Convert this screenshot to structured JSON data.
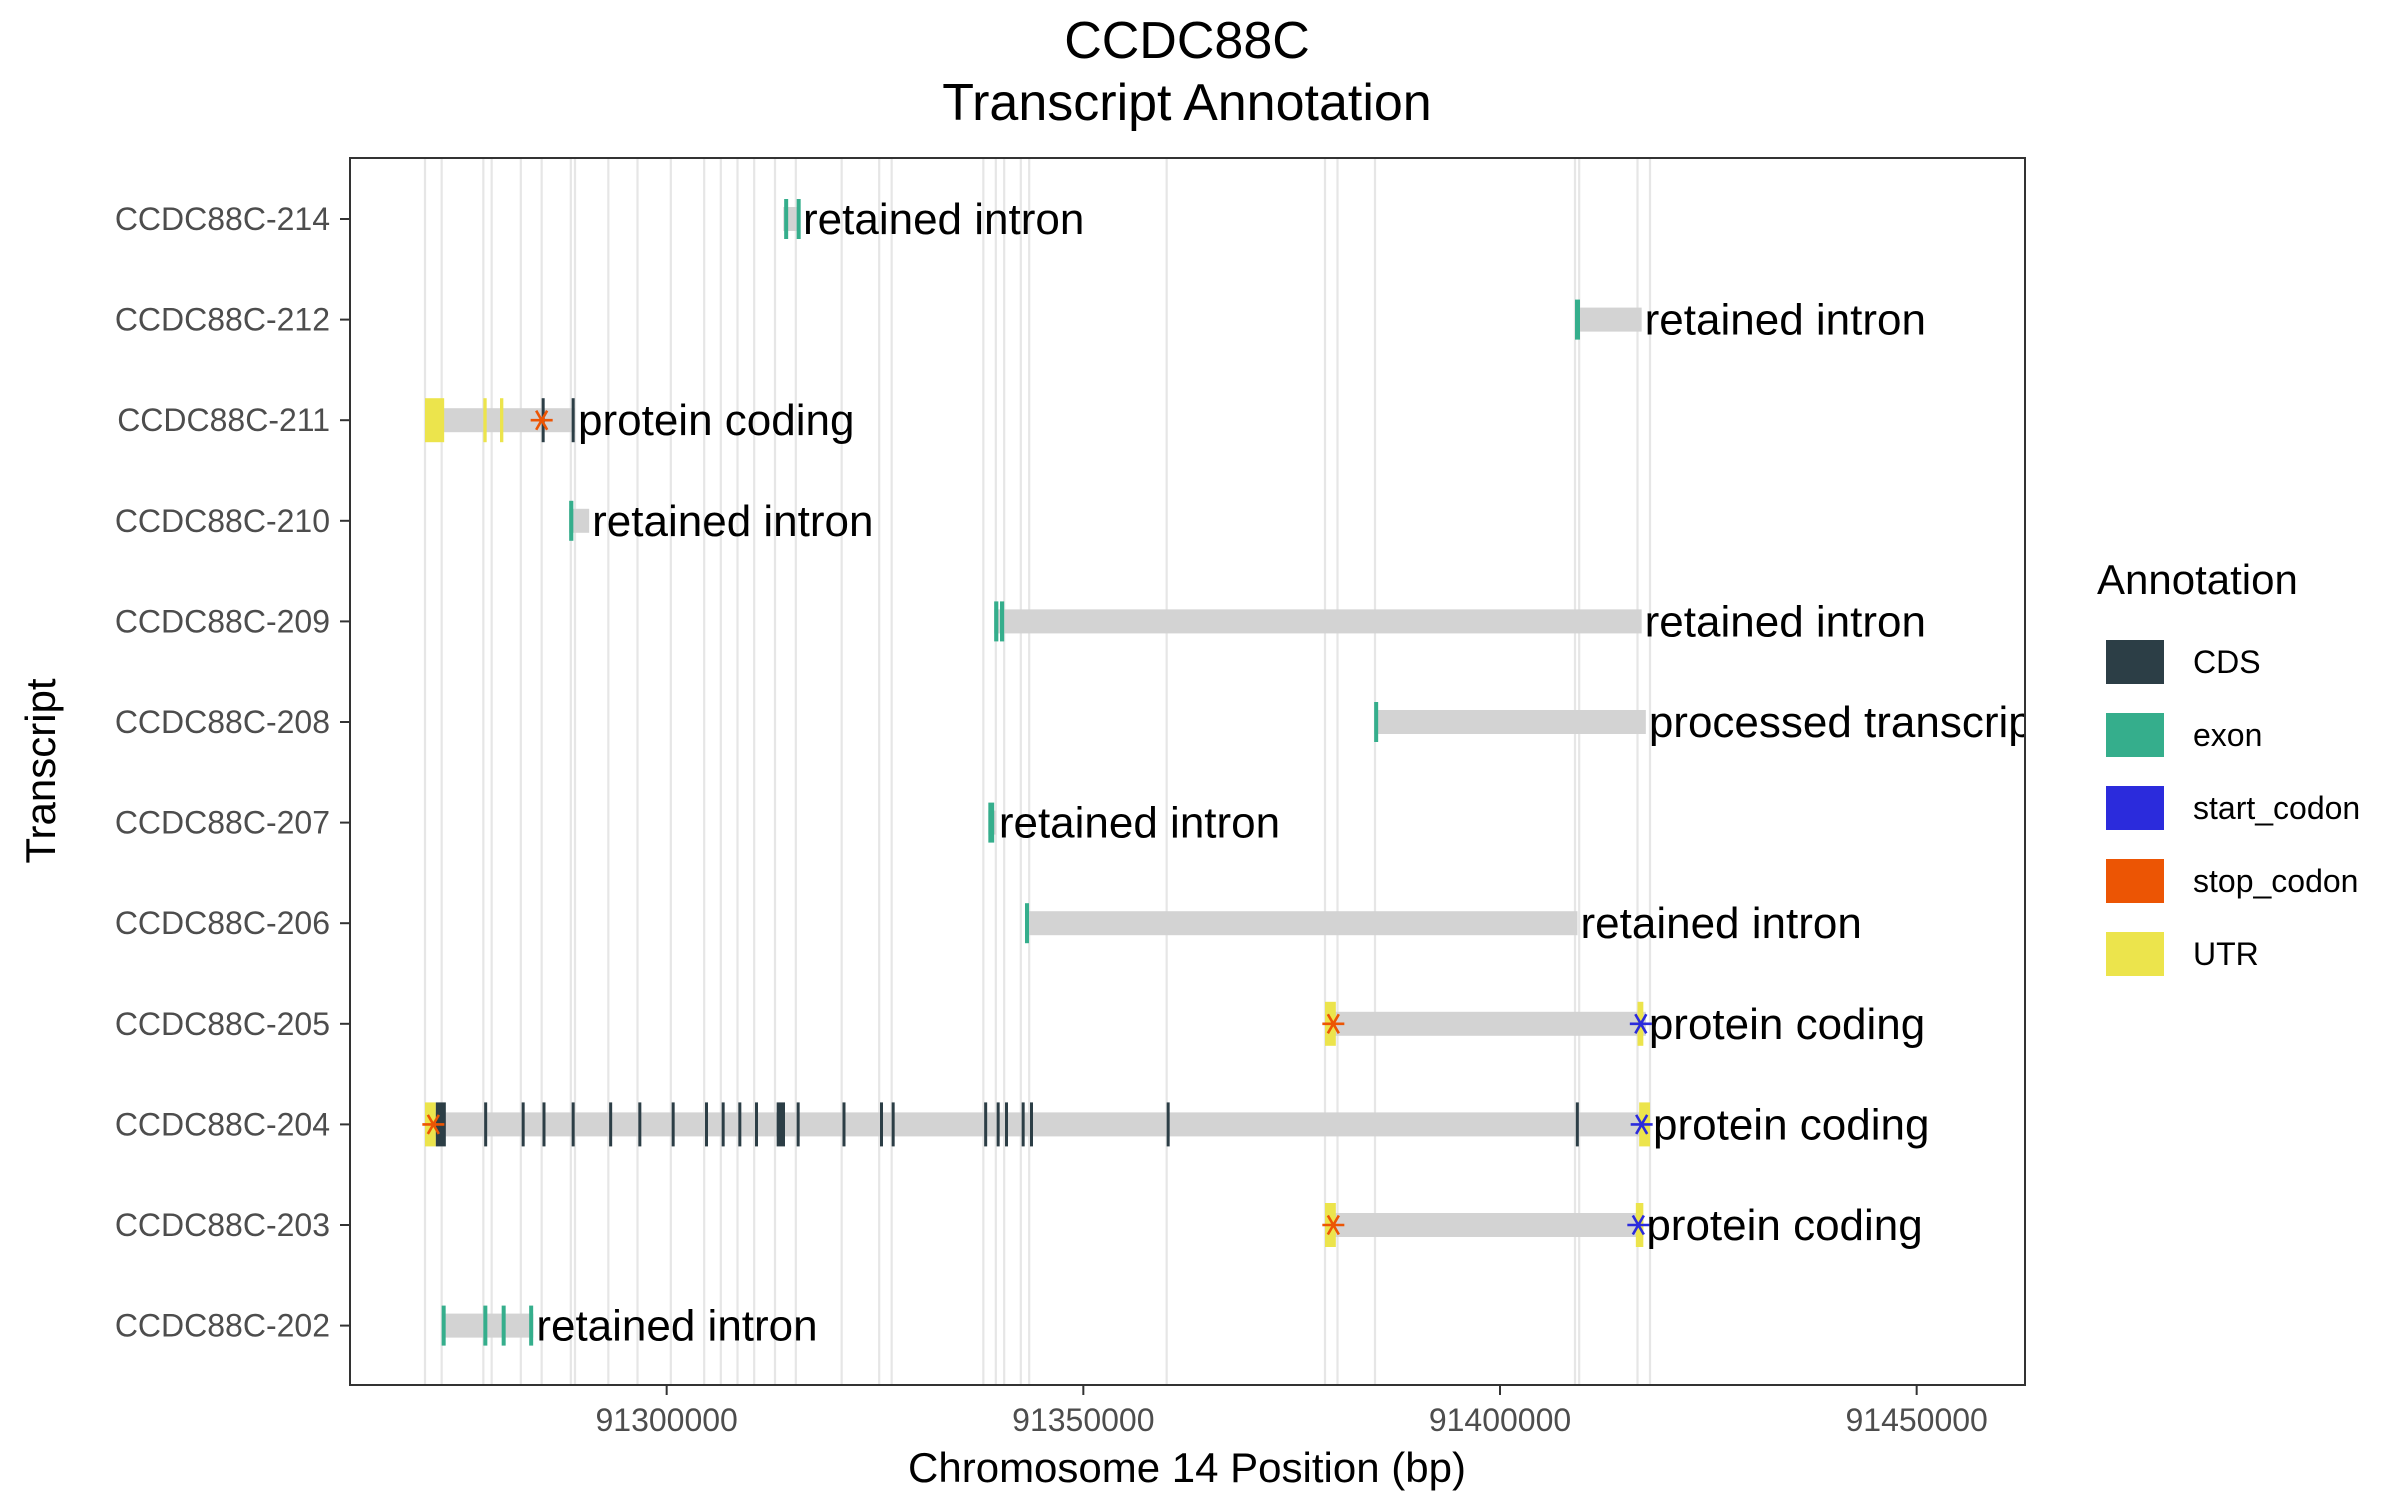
{
  "chart_data": {
    "type": "gantt",
    "title": "CCDC88C",
    "subtitle": "Transcript Annotation",
    "xlabel": "Chromosome 14 Position (bp)",
    "ylabel": "Transcript",
    "xlim": [
      91262000,
      91463000
    ],
    "x_ticks": [
      91300000,
      91350000,
      91400000,
      91450000
    ],
    "x_tick_labels": [
      "91300000",
      "91350000",
      "91400000",
      "91450000"
    ],
    "grid": "vertical lines at exon boundaries",
    "legend": {
      "title": "Annotation",
      "placement": "right",
      "entries": [
        {
          "label": "CDS",
          "color": "#2c3e46"
        },
        {
          "label": "exon",
          "color": "#35ae8c"
        },
        {
          "label": "start_codon",
          "color": "#2b2bdc"
        },
        {
          "label": "stop_codon",
          "color": "#ec5504"
        },
        {
          "label": "UTR",
          "color": "#ece44c"
        }
      ]
    },
    "intron_color": "#d3d3d3",
    "exon_boundaries": [
      91271000,
      91273000,
      91278000,
      91279000,
      91282500,
      91285000,
      91288500,
      91289000,
      91293000,
      91296500,
      91300500,
      91304500,
      91306500,
      91308500,
      91310500,
      91313000,
      91315500,
      91321000,
      91325500,
      91327000,
      91338000,
      91339500,
      91340500,
      91342500,
      91343500,
      91360000,
      91379000,
      91380500,
      91385000,
      91409000,
      91409500,
      91416500,
      91418000
    ],
    "transcripts": [
      {
        "name": "CCDC88C-214",
        "biotype": "retained intron",
        "span": [
          91314000,
          91316000
        ],
        "features": [
          {
            "type": "exon",
            "start": 91314100,
            "end": 91314400
          },
          {
            "type": "exon",
            "start": 91315600,
            "end": 91315900
          }
        ]
      },
      {
        "name": "CCDC88C-212",
        "biotype": "retained intron",
        "span": [
          91409000,
          91417000
        ],
        "features": [
          {
            "type": "exon",
            "start": 91409000,
            "end": 91409600
          }
        ]
      },
      {
        "name": "CCDC88C-211",
        "biotype": "protein coding",
        "span": [
          91271000,
          91289000
        ],
        "features": [
          {
            "type": "UTR",
            "start": 91271000,
            "end": 91273300
          },
          {
            "type": "UTR",
            "start": 91278000,
            "end": 91278400
          },
          {
            "type": "UTR",
            "start": 91280000,
            "end": 91280400
          },
          {
            "type": "CDS",
            "start": 91285000,
            "end": 91285300
          },
          {
            "type": "CDS",
            "start": 91288600,
            "end": 91288900
          },
          {
            "type": "stop_codon",
            "start": 91285000,
            "end": 91285000
          }
        ]
      },
      {
        "name": "CCDC88C-210",
        "biotype": "retained intron",
        "span": [
          91288300,
          91290700
        ],
        "features": [
          {
            "type": "exon",
            "start": 91288300,
            "end": 91288800
          }
        ]
      },
      {
        "name": "CCDC88C-209",
        "biotype": "retained intron",
        "span": [
          91339300,
          91417000
        ],
        "features": [
          {
            "type": "exon",
            "start": 91339300,
            "end": 91339800
          },
          {
            "type": "exon",
            "start": 91340000,
            "end": 91340500
          }
        ]
      },
      {
        "name": "CCDC88C-208",
        "biotype": "processed transcript",
        "span": [
          91384900,
          91417500
        ],
        "features": [
          {
            "type": "exon",
            "start": 91384900,
            "end": 91385200
          }
        ]
      },
      {
        "name": "CCDC88C-207",
        "biotype": "retained intron",
        "span": [
          91338600,
          91339500
        ],
        "features": [
          {
            "type": "exon",
            "start": 91338600,
            "end": 91339300
          }
        ]
      },
      {
        "name": "CCDC88C-206",
        "biotype": "retained intron",
        "span": [
          91343000,
          91409300
        ],
        "features": [
          {
            "type": "exon",
            "start": 91343000,
            "end": 91343400
          }
        ]
      },
      {
        "name": "CCDC88C-205",
        "biotype": "protein coding",
        "span": [
          91379000,
          91417500
        ],
        "features": [
          {
            "type": "UTR",
            "start": 91379000,
            "end": 91380300
          },
          {
            "type": "UTR",
            "start": 91416500,
            "end": 91417200
          },
          {
            "type": "stop_codon",
            "start": 91380000,
            "end": 91380000
          },
          {
            "type": "start_codon",
            "start": 91416900,
            "end": 91416900
          }
        ]
      },
      {
        "name": "CCDC88C-204",
        "biotype": "protein coding",
        "span": [
          91271000,
          91418000
        ],
        "features": [
          {
            "type": "UTR",
            "start": 91271000,
            "end": 91272300
          },
          {
            "type": "CDS",
            "start": 91272300,
            "end": 91273500
          },
          {
            "type": "CDS",
            "start": 91313200,
            "end": 91314200
          },
          {
            "type": "CDS",
            "start": 91278100,
            "end": 91278400
          },
          {
            "type": "CDS",
            "start": 91282600,
            "end": 91282900
          },
          {
            "type": "CDS",
            "start": 91285100,
            "end": 91285400
          },
          {
            "type": "CDS",
            "start": 91288600,
            "end": 91288900
          },
          {
            "type": "CDS",
            "start": 91293100,
            "end": 91293400
          },
          {
            "type": "CDS",
            "start": 91296600,
            "end": 91296900
          },
          {
            "type": "CDS",
            "start": 91300600,
            "end": 91300900
          },
          {
            "type": "CDS",
            "start": 91304600,
            "end": 91304900
          },
          {
            "type": "CDS",
            "start": 91306600,
            "end": 91306900
          },
          {
            "type": "CDS",
            "start": 91308600,
            "end": 91308900
          },
          {
            "type": "CDS",
            "start": 91310600,
            "end": 91310900
          },
          {
            "type": "CDS",
            "start": 91315600,
            "end": 91315900
          },
          {
            "type": "CDS",
            "start": 91321100,
            "end": 91321400
          },
          {
            "type": "CDS",
            "start": 91325600,
            "end": 91325900
          },
          {
            "type": "CDS",
            "start": 91327000,
            "end": 91327300
          },
          {
            "type": "CDS",
            "start": 91338100,
            "end": 91338400
          },
          {
            "type": "CDS",
            "start": 91339600,
            "end": 91339900
          },
          {
            "type": "CDS",
            "start": 91340600,
            "end": 91340900
          },
          {
            "type": "CDS",
            "start": 91342600,
            "end": 91342900
          },
          {
            "type": "CDS",
            "start": 91343600,
            "end": 91343900
          },
          {
            "type": "CDS",
            "start": 91360000,
            "end": 91360300
          },
          {
            "type": "CDS",
            "start": 91409100,
            "end": 91409400
          },
          {
            "type": "UTR",
            "start": 91416700,
            "end": 91418000
          },
          {
            "type": "stop_codon",
            "start": 91272000,
            "end": 91272000
          },
          {
            "type": "start_codon",
            "start": 91417000,
            "end": 91417000
          }
        ]
      },
      {
        "name": "CCDC88C-203",
        "biotype": "protein coding",
        "span": [
          91379000,
          91417200
        ],
        "features": [
          {
            "type": "UTR",
            "start": 91379000,
            "end": 91380300
          },
          {
            "type": "UTR",
            "start": 91416300,
            "end": 91417200
          },
          {
            "type": "stop_codon",
            "start": 91380000,
            "end": 91380000
          },
          {
            "type": "start_codon",
            "start": 91416600,
            "end": 91416600
          }
        ]
      },
      {
        "name": "CCDC88C-202",
        "biotype": "retained intron",
        "span": [
          91273000,
          91284000
        ],
        "features": [
          {
            "type": "exon",
            "start": 91273000,
            "end": 91273300
          },
          {
            "type": "exon",
            "start": 91278000,
            "end": 91278300
          },
          {
            "type": "exon",
            "start": 91280200,
            "end": 91280500
          },
          {
            "type": "exon",
            "start": 91283500,
            "end": 91283800
          }
        ]
      }
    ]
  }
}
